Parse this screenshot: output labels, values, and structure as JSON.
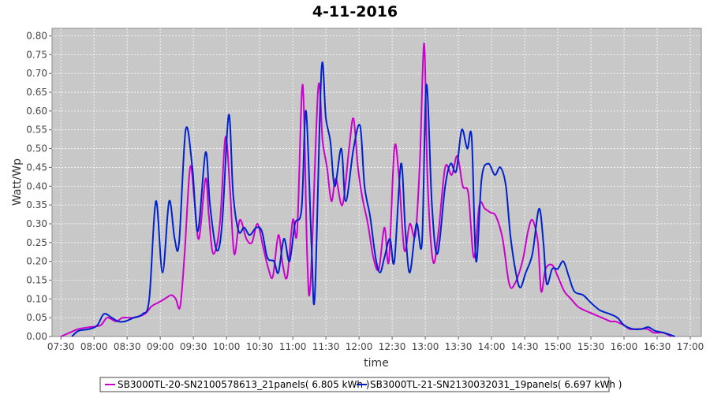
{
  "chart_data": {
    "type": "line",
    "title": "4-11-2016",
    "xlabel": "time",
    "ylabel": "Watt/Wp",
    "ylim": [
      0,
      0.82
    ],
    "xlim": [
      "07:22",
      "17:10"
    ],
    "grid": true,
    "legend_position": "bottom",
    "x_ticks": [
      "07:30",
      "08:00",
      "08:30",
      "09:00",
      "09:30",
      "10:00",
      "10:30",
      "11:00",
      "11:30",
      "12:00",
      "12:30",
      "13:00",
      "13:30",
      "14:00",
      "14:30",
      "15:00",
      "15:30",
      "16:00",
      "16:30",
      "17:00"
    ],
    "y_ticks": [
      "0.00",
      "0.05",
      "0.10",
      "0.15",
      "0.20",
      "0.25",
      "0.30",
      "0.35",
      "0.40",
      "0.45",
      "0.50",
      "0.55",
      "0.60",
      "0.65",
      "0.70",
      "0.75",
      "0.80"
    ],
    "series": [
      {
        "name": "SB3000TL-20-SN2100578613_21panels( 6.805 kWh )",
        "color": "#cc00cc",
        "points": [
          [
            "07:30",
            0.0
          ],
          [
            "07:38",
            0.01
          ],
          [
            "07:46",
            0.02
          ],
          [
            "07:56",
            0.025
          ],
          [
            "08:06",
            0.03
          ],
          [
            "08:12",
            0.05
          ],
          [
            "08:20",
            0.04
          ],
          [
            "08:26",
            0.05
          ],
          [
            "08:36",
            0.05
          ],
          [
            "08:46",
            0.06
          ],
          [
            "08:52",
            0.08
          ],
          [
            "08:58",
            0.09
          ],
          [
            "09:04",
            0.1
          ],
          [
            "09:10",
            0.11
          ],
          [
            "09:14",
            0.1
          ],
          [
            "09:18",
            0.08
          ],
          [
            "09:22",
            0.22
          ],
          [
            "09:27",
            0.45
          ],
          [
            "09:31",
            0.36
          ],
          [
            "09:35",
            0.26
          ],
          [
            "09:41",
            0.42
          ],
          [
            "09:44",
            0.32
          ],
          [
            "09:48",
            0.22
          ],
          [
            "09:54",
            0.3
          ],
          [
            "09:59",
            0.53
          ],
          [
            "10:03",
            0.4
          ],
          [
            "10:07",
            0.22
          ],
          [
            "10:12",
            0.31
          ],
          [
            "10:18",
            0.26
          ],
          [
            "10:23",
            0.25
          ],
          [
            "10:28",
            0.3
          ],
          [
            "10:33",
            0.24
          ],
          [
            "10:38",
            0.18
          ],
          [
            "10:42",
            0.16
          ],
          [
            "10:47",
            0.27
          ],
          [
            "10:51",
            0.19
          ],
          [
            "10:55",
            0.16
          ],
          [
            "11:00",
            0.31
          ],
          [
            "11:04",
            0.28
          ],
          [
            "11:09",
            0.67
          ],
          [
            "11:13",
            0.22
          ],
          [
            "11:16",
            0.14
          ],
          [
            "11:23",
            0.66
          ],
          [
            "11:27",
            0.52
          ],
          [
            "11:31",
            0.45
          ],
          [
            "11:35",
            0.36
          ],
          [
            "11:39",
            0.42
          ],
          [
            "11:45",
            0.35
          ],
          [
            "11:51",
            0.5
          ],
          [
            "11:55",
            0.58
          ],
          [
            "11:59",
            0.45
          ],
          [
            "12:03",
            0.37
          ],
          [
            "12:08",
            0.3
          ],
          [
            "12:13",
            0.21
          ],
          [
            "12:18",
            0.18
          ],
          [
            "12:23",
            0.29
          ],
          [
            "12:27",
            0.2
          ],
          [
            "12:32",
            0.5
          ],
          [
            "12:36",
            0.43
          ],
          [
            "12:41",
            0.23
          ],
          [
            "12:46",
            0.3
          ],
          [
            "12:51",
            0.27
          ],
          [
            "12:55",
            0.46
          ],
          [
            "12:59",
            0.78
          ],
          [
            "13:02",
            0.42
          ],
          [
            "13:07",
            0.2
          ],
          [
            "13:12",
            0.28
          ],
          [
            "13:18",
            0.45
          ],
          [
            "13:24",
            0.43
          ],
          [
            "13:29",
            0.48
          ],
          [
            "13:34",
            0.4
          ],
          [
            "13:39",
            0.38
          ],
          [
            "13:44",
            0.21
          ],
          [
            "13:49",
            0.35
          ],
          [
            "13:54",
            0.34
          ],
          [
            "13:59",
            0.33
          ],
          [
            "14:04",
            0.32
          ],
          [
            "14:10",
            0.26
          ],
          [
            "14:16",
            0.14
          ],
          [
            "14:21",
            0.14
          ],
          [
            "14:28",
            0.2
          ],
          [
            "14:33",
            0.28
          ],
          [
            "14:37",
            0.31
          ],
          [
            "14:42",
            0.25
          ],
          [
            "14:45",
            0.12
          ],
          [
            "14:49",
            0.18
          ],
          [
            "14:55",
            0.19
          ],
          [
            "15:00",
            0.16
          ],
          [
            "15:06",
            0.12
          ],
          [
            "15:12",
            0.1
          ],
          [
            "15:18",
            0.08
          ],
          [
            "15:24",
            0.07
          ],
          [
            "15:32",
            0.06
          ],
          [
            "15:40",
            0.05
          ],
          [
            "15:48",
            0.04
          ],
          [
            "15:52",
            0.04
          ],
          [
            "16:00",
            0.03
          ],
          [
            "16:05",
            0.02
          ],
          [
            "16:13",
            0.02
          ],
          [
            "16:21",
            0.02
          ],
          [
            "16:27",
            0.01
          ],
          [
            "16:35",
            0.01
          ],
          [
            "16:43",
            0.0
          ]
        ]
      },
      {
        "name": "SB3000TL-21-SN2130032031_19panels( 6.697 kWh )",
        "color": "#0022cc",
        "points": [
          [
            "07:40",
            0.0
          ],
          [
            "07:46",
            0.015
          ],
          [
            "07:56",
            0.02
          ],
          [
            "08:03",
            0.03
          ],
          [
            "08:09",
            0.06
          ],
          [
            "08:16",
            0.05
          ],
          [
            "08:22",
            0.04
          ],
          [
            "08:28",
            0.04
          ],
          [
            "08:36",
            0.05
          ],
          [
            "08:44",
            0.06
          ],
          [
            "08:50",
            0.1
          ],
          [
            "08:56",
            0.36
          ],
          [
            "09:02",
            0.17
          ],
          [
            "09:08",
            0.36
          ],
          [
            "09:13",
            0.26
          ],
          [
            "09:17",
            0.25
          ],
          [
            "09:23",
            0.55
          ],
          [
            "09:29",
            0.45
          ],
          [
            "09:34",
            0.28
          ],
          [
            "09:41",
            0.49
          ],
          [
            "09:45",
            0.35
          ],
          [
            "09:51",
            0.23
          ],
          [
            "09:56",
            0.3
          ],
          [
            "10:02",
            0.59
          ],
          [
            "10:06",
            0.38
          ],
          [
            "10:11",
            0.28
          ],
          [
            "10:16",
            0.29
          ],
          [
            "10:21",
            0.27
          ],
          [
            "10:27",
            0.29
          ],
          [
            "10:32",
            0.28
          ],
          [
            "10:37",
            0.21
          ],
          [
            "10:43",
            0.2
          ],
          [
            "10:47",
            0.17
          ],
          [
            "10:52",
            0.26
          ],
          [
            "10:57",
            0.2
          ],
          [
            "11:02",
            0.3
          ],
          [
            "11:08",
            0.34
          ],
          [
            "11:12",
            0.6
          ],
          [
            "11:17",
            0.24
          ],
          [
            "11:20",
            0.11
          ],
          [
            "11:26",
            0.71
          ],
          [
            "11:30",
            0.58
          ],
          [
            "11:34",
            0.52
          ],
          [
            "11:38",
            0.4
          ],
          [
            "11:44",
            0.5
          ],
          [
            "11:48",
            0.36
          ],
          [
            "11:55",
            0.5
          ],
          [
            "12:01",
            0.56
          ],
          [
            "12:05",
            0.4
          ],
          [
            "12:10",
            0.32
          ],
          [
            "12:15",
            0.21
          ],
          [
            "12:19",
            0.17
          ],
          [
            "12:23",
            0.21
          ],
          [
            "12:28",
            0.26
          ],
          [
            "12:32",
            0.2
          ],
          [
            "12:38",
            0.46
          ],
          [
            "12:42",
            0.28
          ],
          [
            "12:46",
            0.17
          ],
          [
            "12:52",
            0.3
          ],
          [
            "12:57",
            0.25
          ],
          [
            "13:01",
            0.67
          ],
          [
            "13:06",
            0.35
          ],
          [
            "13:11",
            0.22
          ],
          [
            "13:18",
            0.4
          ],
          [
            "13:23",
            0.46
          ],
          [
            "13:28",
            0.44
          ],
          [
            "13:33",
            0.55
          ],
          [
            "13:38",
            0.5
          ],
          [
            "13:42",
            0.53
          ],
          [
            "13:46",
            0.2
          ],
          [
            "13:51",
            0.42
          ],
          [
            "13:57",
            0.46
          ],
          [
            "14:03",
            0.43
          ],
          [
            "14:08",
            0.45
          ],
          [
            "14:13",
            0.4
          ],
          [
            "14:17",
            0.27
          ],
          [
            "14:22",
            0.17
          ],
          [
            "14:26",
            0.13
          ],
          [
            "14:31",
            0.17
          ],
          [
            "14:37",
            0.22
          ],
          [
            "14:43",
            0.34
          ],
          [
            "14:47",
            0.25
          ],
          [
            "14:50",
            0.14
          ],
          [
            "14:55",
            0.18
          ],
          [
            "15:00",
            0.18
          ],
          [
            "15:05",
            0.2
          ],
          [
            "15:10",
            0.16
          ],
          [
            "15:15",
            0.12
          ],
          [
            "15:23",
            0.11
          ],
          [
            "15:30",
            0.09
          ],
          [
            "15:38",
            0.07
          ],
          [
            "15:47",
            0.06
          ],
          [
            "15:54",
            0.05
          ],
          [
            "16:00",
            0.03
          ],
          [
            "16:08",
            0.02
          ],
          [
            "16:16",
            0.02
          ],
          [
            "16:22",
            0.025
          ],
          [
            "16:28",
            0.015
          ],
          [
            "16:36",
            0.01
          ],
          [
            "16:46",
            0.0
          ]
        ]
      }
    ]
  }
}
